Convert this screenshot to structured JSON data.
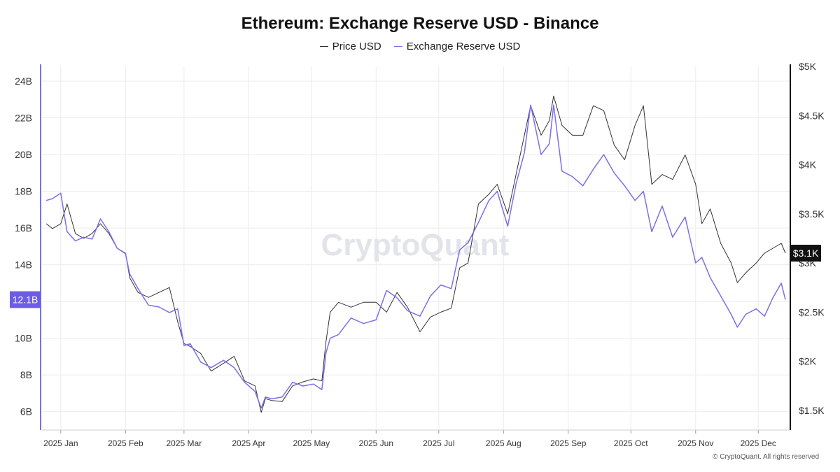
{
  "title": "Ethereum: Exchange Reserve USD - Binance",
  "legend": [
    {
      "name": "Price USD",
      "color": "#333333"
    },
    {
      "name": "Exchange Reserve USD",
      "color": "#7b6ef0"
    }
  ],
  "watermark": "CryptoQuant",
  "footer": "© CryptoQuant. All rights reserved",
  "chart_data": {
    "type": "line",
    "title": "Ethereum: Exchange Reserve USD - Binance",
    "x_ticks": [
      "2025 Jan",
      "2025 Feb",
      "2025 Mar",
      "2025 Apr",
      "2025 May",
      "2025 Jun",
      "2025 Jul",
      "2025 Aug",
      "2025 Sep",
      "2025 Oct",
      "2025 Nov",
      "2025 Dec"
    ],
    "x_range": [
      "2024-12-23",
      "2025-12-16"
    ],
    "y_left": {
      "min": 5,
      "max": 24.8,
      "ticks": [
        "6B",
        "8B",
        "10B",
        "12B",
        "14B",
        "16B",
        "18B",
        "20B",
        "22B",
        "24B"
      ],
      "tick_values": [
        6,
        8,
        10,
        12,
        14,
        16,
        18,
        20,
        22,
        24
      ],
      "current_label": "12.1B",
      "current_value": 12.1
    },
    "y_right": {
      "min": 1300,
      "max": 5000,
      "ticks": [
        "$1.5K",
        "$2K",
        "$2.5K",
        "$3K",
        "$3.5K",
        "$4K",
        "$4.5K",
        "$5K"
      ],
      "tick_values": [
        1500,
        2000,
        2500,
        3000,
        3500,
        4000,
        4500,
        5000
      ],
      "current_label": "$3.1K",
      "current_value": 3100
    },
    "grid": true,
    "legend_position": "top-center",
    "series": [
      {
        "name": "Price USD",
        "axis": "right",
        "color": "#333333",
        "x": [
          "2024-12-25",
          "2024-12-28",
          "2025-01-01",
          "2025-01-04",
          "2025-01-08",
          "2025-01-12",
          "2025-01-16",
          "2025-01-20",
          "2025-01-24",
          "2025-01-28",
          "2025-02-01",
          "2025-02-03",
          "2025-02-07",
          "2025-02-12",
          "2025-02-17",
          "2025-02-22",
          "2025-02-26",
          "2025-03-01",
          "2025-03-04",
          "2025-03-09",
          "2025-03-14",
          "2025-03-20",
          "2025-03-25",
          "2025-03-30",
          "2025-04-04",
          "2025-04-07",
          "2025-04-09",
          "2025-04-12",
          "2025-04-17",
          "2025-04-22",
          "2025-04-27",
          "2025-05-02",
          "2025-05-06",
          "2025-05-08",
          "2025-05-10",
          "2025-05-14",
          "2025-05-20",
          "2025-05-26",
          "2025-06-01",
          "2025-06-06",
          "2025-06-11",
          "2025-06-16",
          "2025-06-22",
          "2025-06-27",
          "2025-07-02",
          "2025-07-07",
          "2025-07-11",
          "2025-07-15",
          "2025-07-20",
          "2025-07-25",
          "2025-07-29",
          "2025-08-03",
          "2025-08-07",
          "2025-08-11",
          "2025-08-14",
          "2025-08-19",
          "2025-08-23",
          "2025-08-25",
          "2025-08-29",
          "2025-09-03",
          "2025-09-08",
          "2025-09-13",
          "2025-09-18",
          "2025-09-23",
          "2025-09-28",
          "2025-10-03",
          "2025-10-07",
          "2025-10-11",
          "2025-10-16",
          "2025-10-21",
          "2025-10-27",
          "2025-11-01",
          "2025-11-04",
          "2025-11-08",
          "2025-11-13",
          "2025-11-18",
          "2025-11-21",
          "2025-11-25",
          "2025-11-30",
          "2025-12-04",
          "2025-12-08",
          "2025-12-12",
          "2025-12-14"
        ],
        "values": [
          3400,
          3350,
          3400,
          3600,
          3300,
          3250,
          3300,
          3400,
          3300,
          3150,
          3100,
          2850,
          2700,
          2650,
          2700,
          2750,
          2400,
          2180,
          2150,
          2080,
          1900,
          1980,
          2050,
          1800,
          1750,
          1480,
          1620,
          1600,
          1590,
          1750,
          1790,
          1820,
          1800,
          2200,
          2500,
          2600,
          2550,
          2600,
          2600,
          2500,
          2700,
          2550,
          2300,
          2450,
          2500,
          2540,
          2950,
          3000,
          3600,
          3700,
          3800,
          3500,
          3900,
          4300,
          4600,
          4300,
          4450,
          4700,
          4400,
          4300,
          4300,
          4600,
          4550,
          4200,
          4050,
          4400,
          4600,
          3800,
          3900,
          3850,
          4100,
          3800,
          3400,
          3550,
          3200,
          3000,
          2800,
          2900,
          3000,
          3100,
          3150,
          3200,
          3100
        ]
      },
      {
        "name": "Exchange Reserve USD",
        "axis": "left",
        "color": "#7b6ef0",
        "x": [
          "2024-12-25",
          "2024-12-28",
          "2025-01-01",
          "2025-01-04",
          "2025-01-08",
          "2025-01-12",
          "2025-01-16",
          "2025-01-20",
          "2025-01-24",
          "2025-01-28",
          "2025-02-01",
          "2025-02-03",
          "2025-02-07",
          "2025-02-12",
          "2025-02-17",
          "2025-02-22",
          "2025-02-26",
          "2025-03-01",
          "2025-03-04",
          "2025-03-09",
          "2025-03-14",
          "2025-03-20",
          "2025-03-25",
          "2025-03-30",
          "2025-04-04",
          "2025-04-07",
          "2025-04-09",
          "2025-04-12",
          "2025-04-17",
          "2025-04-22",
          "2025-04-27",
          "2025-05-02",
          "2025-05-06",
          "2025-05-08",
          "2025-05-10",
          "2025-05-14",
          "2025-05-20",
          "2025-05-26",
          "2025-06-01",
          "2025-06-06",
          "2025-06-11",
          "2025-06-16",
          "2025-06-22",
          "2025-06-27",
          "2025-07-02",
          "2025-07-07",
          "2025-07-11",
          "2025-07-15",
          "2025-07-20",
          "2025-07-25",
          "2025-07-29",
          "2025-08-03",
          "2025-08-07",
          "2025-08-11",
          "2025-08-14",
          "2025-08-19",
          "2025-08-23",
          "2025-08-25",
          "2025-08-29",
          "2025-09-03",
          "2025-09-08",
          "2025-09-13",
          "2025-09-18",
          "2025-09-23",
          "2025-09-28",
          "2025-10-03",
          "2025-10-07",
          "2025-10-11",
          "2025-10-16",
          "2025-10-21",
          "2025-10-27",
          "2025-11-01",
          "2025-11-04",
          "2025-11-08",
          "2025-11-13",
          "2025-11-18",
          "2025-11-21",
          "2025-11-25",
          "2025-11-30",
          "2025-12-04",
          "2025-12-08",
          "2025-12-12",
          "2025-12-14"
        ],
        "values": [
          17.5,
          17.6,
          17.9,
          15.8,
          15.3,
          15.5,
          15.4,
          16.5,
          15.8,
          14.9,
          14.6,
          13.5,
          12.7,
          11.8,
          11.7,
          11.4,
          11.6,
          9.6,
          9.7,
          8.7,
          8.4,
          8.8,
          8.4,
          7.6,
          7.1,
          6.2,
          6.8,
          6.7,
          6.8,
          7.6,
          7.4,
          7.5,
          7.2,
          9.2,
          10.0,
          10.2,
          11.1,
          10.8,
          11.0,
          12.6,
          12.2,
          11.5,
          11.2,
          12.3,
          12.9,
          12.7,
          14.8,
          15.2,
          16.3,
          17.5,
          18.0,
          16.1,
          18.4,
          20.1,
          22.7,
          20.0,
          20.6,
          22.7,
          19.1,
          18.8,
          18.3,
          19.2,
          20.0,
          19.0,
          18.3,
          17.5,
          18.0,
          15.8,
          17.2,
          15.5,
          16.6,
          14.1,
          14.4,
          13.3,
          12.3,
          11.3,
          10.6,
          11.3,
          11.6,
          11.2,
          12.2,
          13.0,
          12.1
        ]
      }
    ]
  }
}
